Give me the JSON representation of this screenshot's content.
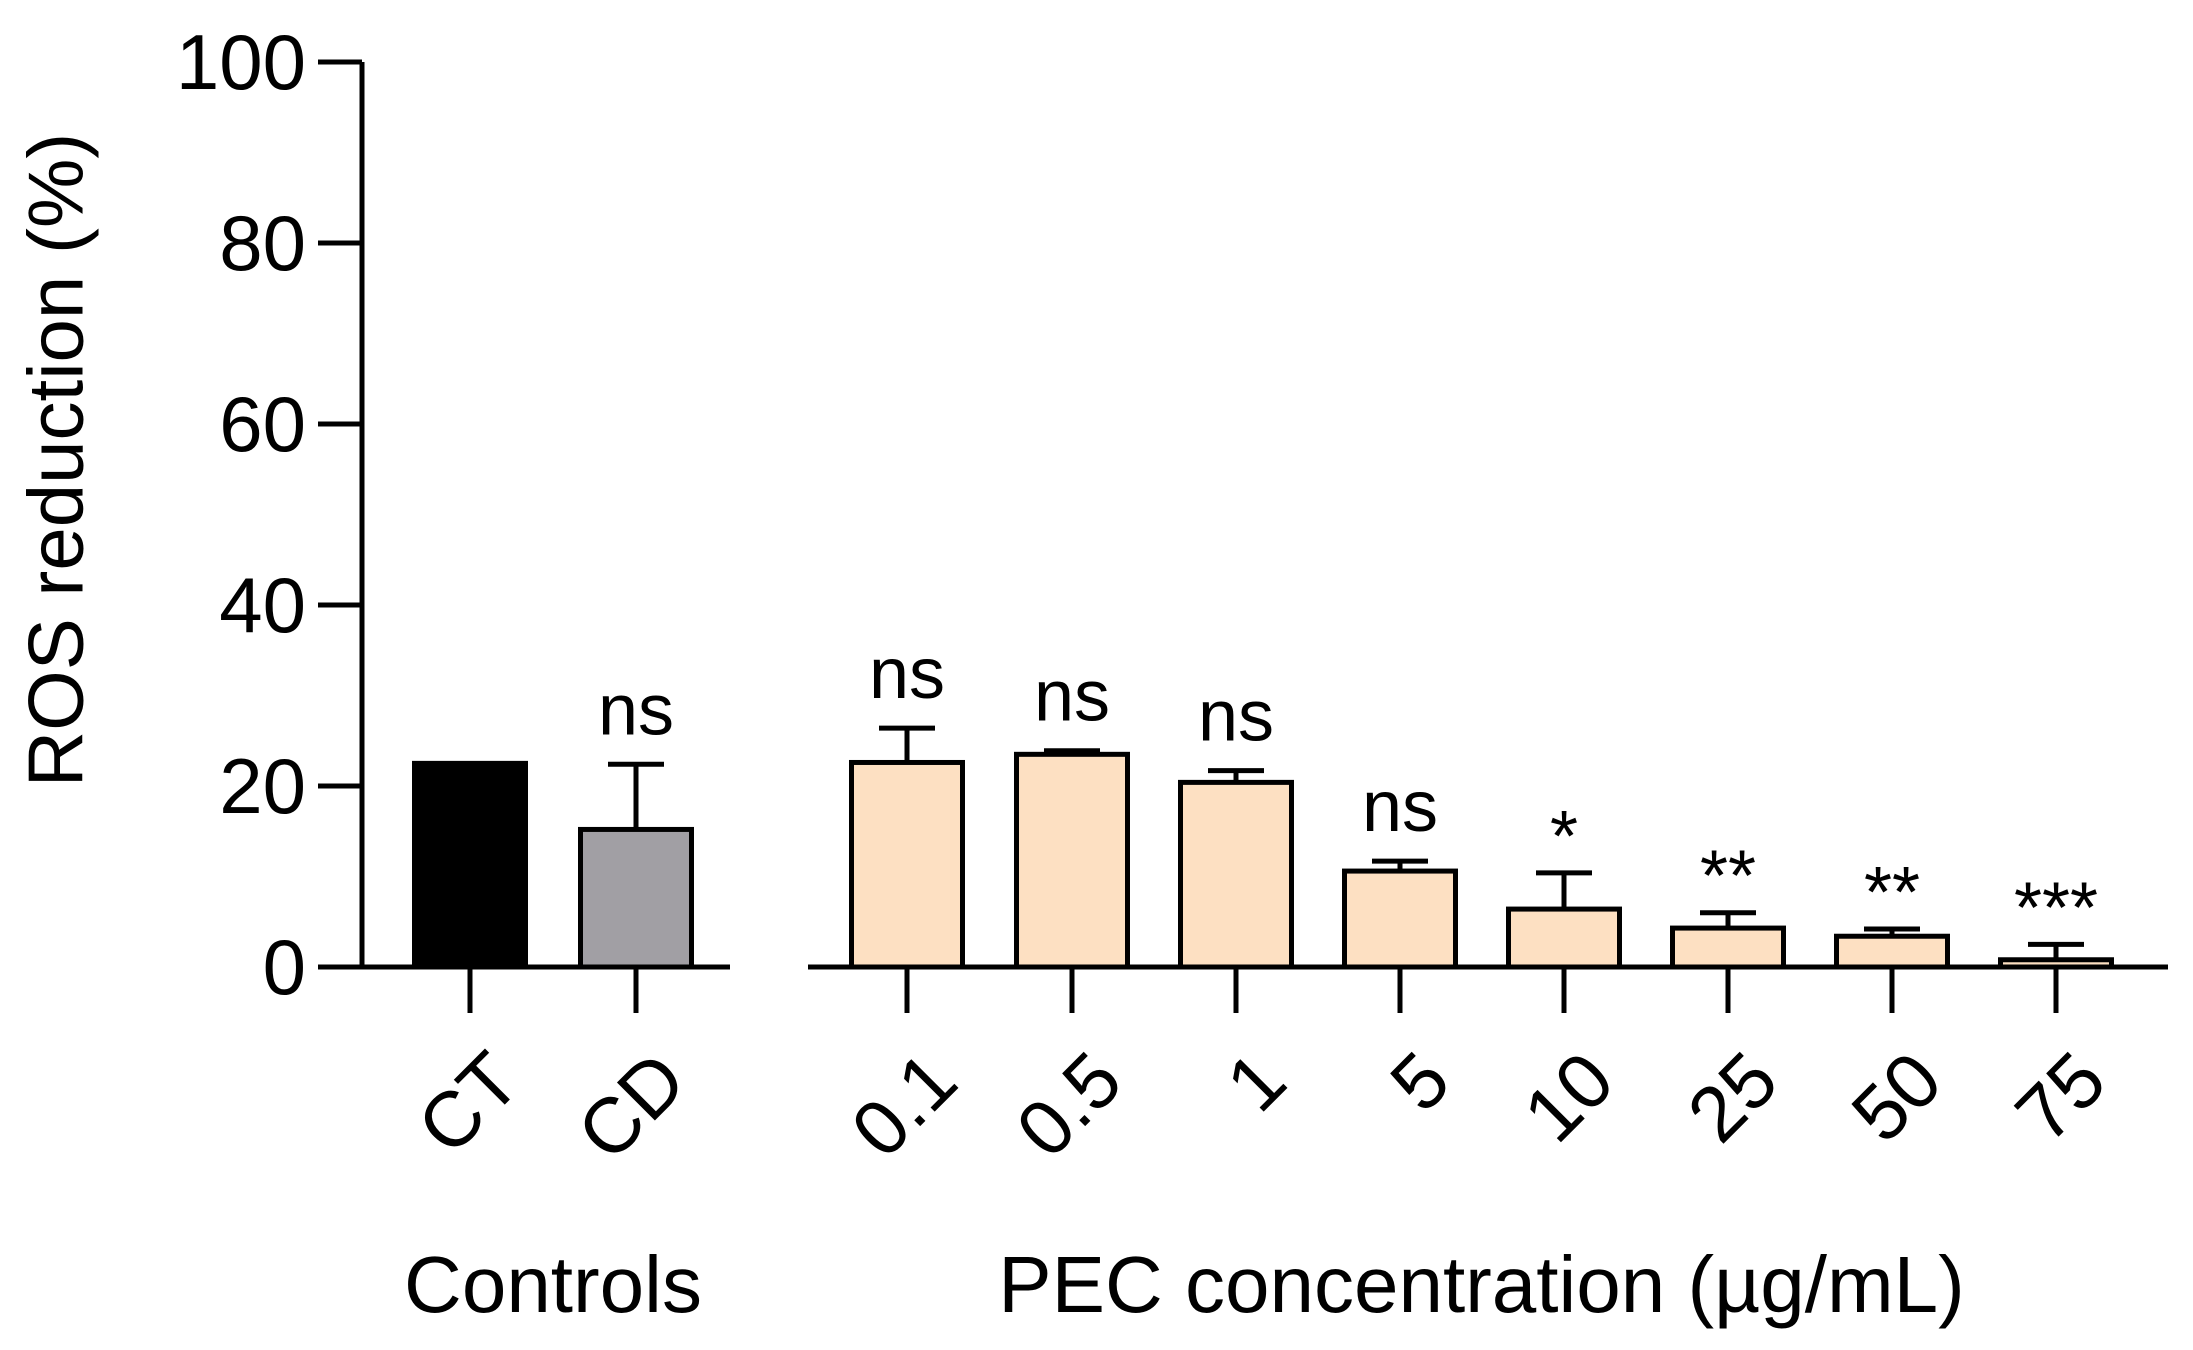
{
  "chart_data": {
    "type": "bar",
    "ylabel": "ROS reduction (%)",
    "ylim": [
      0,
      100
    ],
    "yticks": [
      0,
      20,
      40,
      60,
      80,
      100
    ],
    "groups": [
      {
        "title": "Controls",
        "bars": [
          {
            "category": "CT",
            "value": 22.5,
            "error": 0,
            "significance": "",
            "color": "#000000"
          },
          {
            "category": "CD",
            "value": 15.2,
            "error": 7.2,
            "significance": "ns",
            "color": "#a19fa4"
          }
        ]
      },
      {
        "title": "PEC concentration (µg/mL)",
        "bars": [
          {
            "category": "0.1",
            "value": 22.6,
            "error": 3.8,
            "significance": "ns",
            "color": "#fde0c2"
          },
          {
            "category": "0.5",
            "value": 23.5,
            "error": 0.4,
            "significance": "ns",
            "color": "#fde0c2"
          },
          {
            "category": "1",
            "value": 20.4,
            "error": 1.3,
            "significance": "ns",
            "color": "#fde0c2"
          },
          {
            "category": "5",
            "value": 10.6,
            "error": 1.1,
            "significance": "ns",
            "color": "#fde0c2"
          },
          {
            "category": "10",
            "value": 6.4,
            "error": 4.0,
            "significance": "*",
            "color": "#fde0c2"
          },
          {
            "category": "25",
            "value": 4.3,
            "error": 1.7,
            "significance": "**",
            "color": "#fde0c2"
          },
          {
            "category": "50",
            "value": 3.4,
            "error": 0.8,
            "significance": "**",
            "color": "#fde0c2"
          },
          {
            "category": "75",
            "value": 0.8,
            "error": 1.7,
            "significance": "***",
            "color": "#fde0c2"
          }
        ]
      }
    ],
    "legend": "none",
    "grid": false
  }
}
